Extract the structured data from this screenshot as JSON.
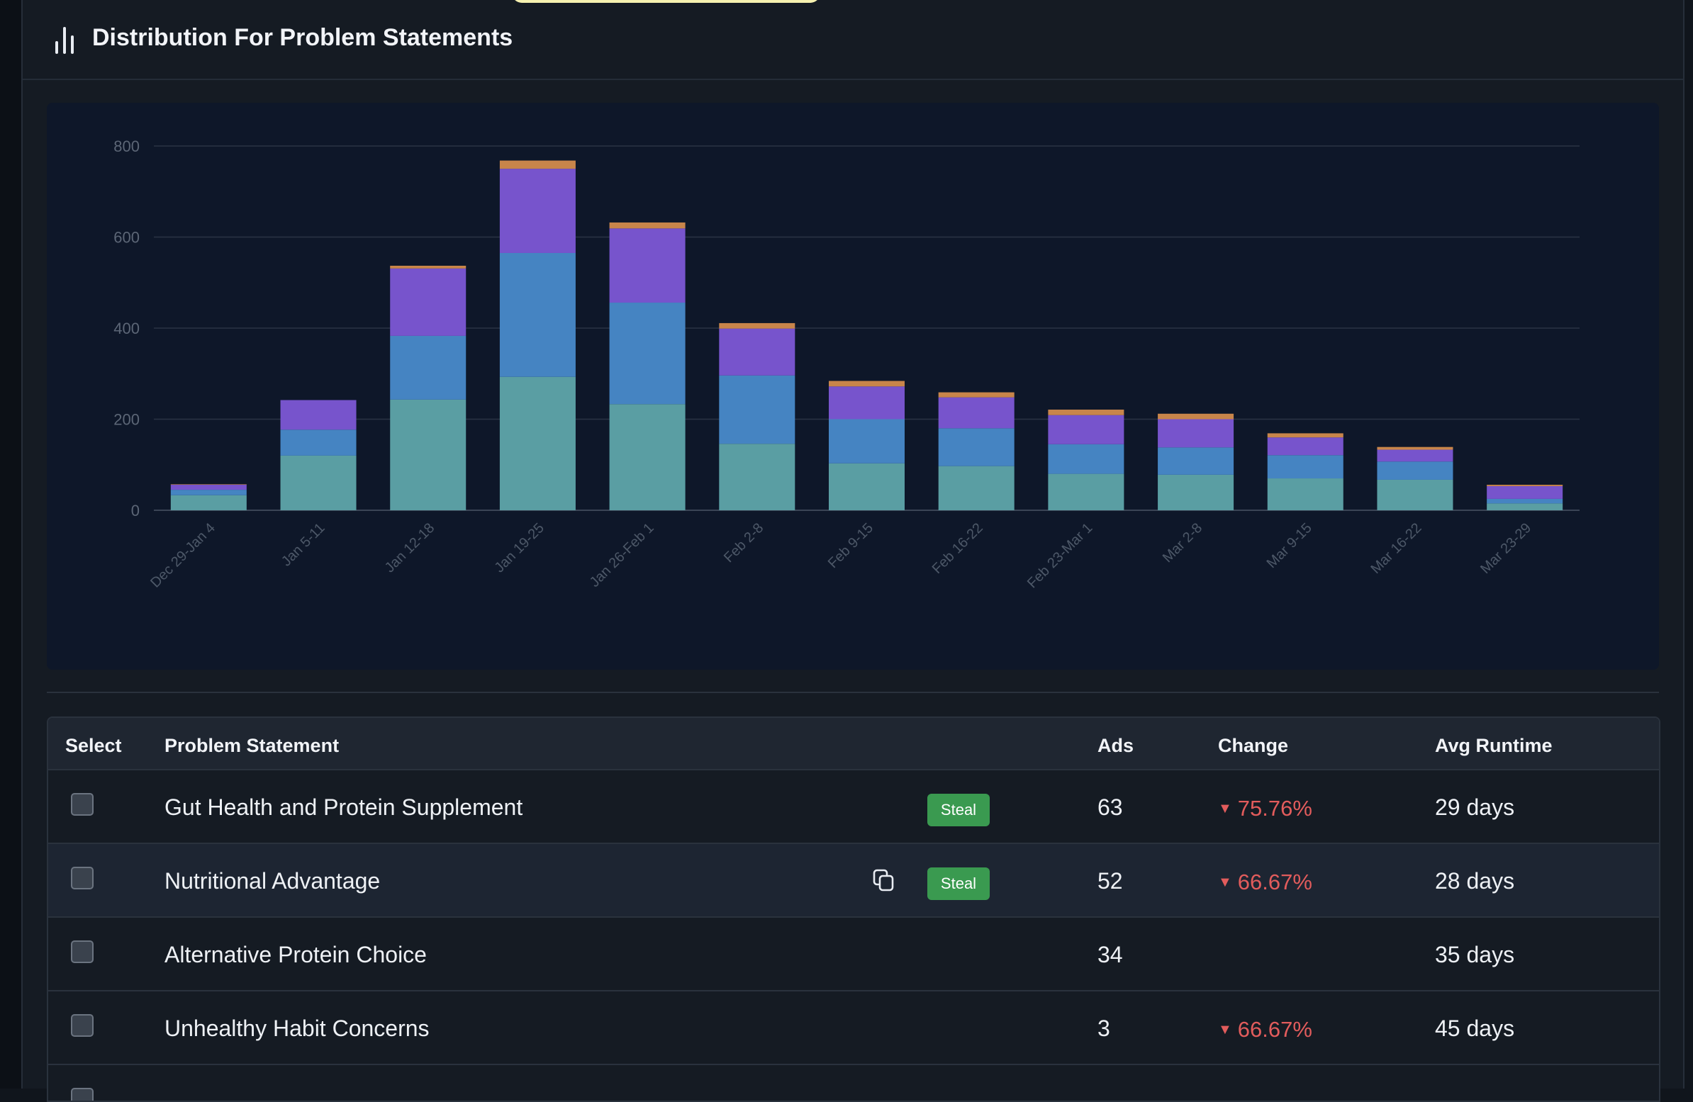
{
  "header": {
    "title": "Distribution For Problem Statements",
    "icon": "bar-chart-icon"
  },
  "chart_data": {
    "type": "bar",
    "stacked": true,
    "categories": [
      "Dec 29-Jan 4",
      "Jan 5-11",
      "Jan 12-18",
      "Jan 19-25",
      "Jan 26-Feb 1",
      "Feb 2-8",
      "Feb 9-15",
      "Feb 16-22",
      "Feb 23-Mar 1",
      "Mar 2-8",
      "Mar 9-15",
      "Mar 16-22",
      "Mar 23-29"
    ],
    "series": [
      {
        "color": "#5a9ea3",
        "values": [
          33,
          120,
          243,
          293,
          233,
          146,
          103,
          97,
          80,
          78,
          70,
          67,
          15
        ]
      },
      {
        "color": "#4584c2",
        "values": [
          12,
          57,
          140,
          272,
          223,
          150,
          97,
          83,
          65,
          60,
          51,
          40,
          10
        ]
      },
      {
        "color": "#7754cc",
        "values": [
          11,
          65,
          148,
          185,
          163,
          103,
          72,
          68,
          64,
          62,
          39,
          26,
          28
        ]
      },
      {
        "color": "#c8854a",
        "values": [
          1,
          0,
          6,
          18,
          13,
          12,
          12,
          11,
          12,
          12,
          9,
          6,
          3
        ]
      }
    ],
    "yticks": [
      0,
      200,
      400,
      600,
      800
    ],
    "ylim": [
      0,
      800
    ],
    "grid": true,
    "legend": "none"
  },
  "table": {
    "headers": {
      "select": "Select",
      "problem_statement": "Problem Statement",
      "ads": "Ads",
      "change": "Change",
      "avg_runtime": "Avg Runtime"
    },
    "rows": [
      {
        "statement": "Gut Health and Protein Supplement",
        "badge": "Steal",
        "ads": "63",
        "change": "75.76%",
        "runtime": "29 days"
      },
      {
        "statement": "Nutritional Advantage",
        "badge": "Steal",
        "ads": "52",
        "change": "66.67%",
        "runtime": "28 days"
      },
      {
        "statement": "Alternative Protein Choice",
        "badge": "",
        "ads": "34",
        "change": "",
        "runtime": "35 days"
      },
      {
        "statement": "Unhealthy Habit Concerns",
        "badge": "",
        "ads": "3",
        "change": "66.67%",
        "runtime": "45 days"
      }
    ],
    "down_arrow": "▼"
  }
}
